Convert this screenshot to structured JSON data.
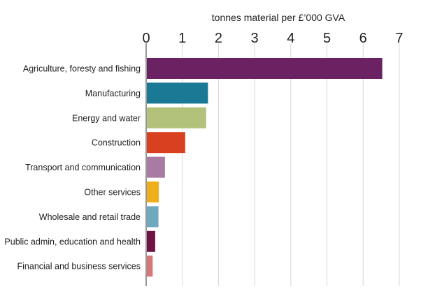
{
  "chart_data": {
    "type": "bar",
    "orientation": "horizontal",
    "title": "",
    "xlabel": "tonnes material per £’000 GVA",
    "ylabel": "",
    "xlim": [
      0,
      7
    ],
    "x_ticks": [
      0,
      1,
      2,
      3,
      4,
      5,
      6,
      7
    ],
    "x_axis_position": "top",
    "grid": true,
    "legend": "none",
    "categories": [
      "Agriculture, foresty and fishing",
      "Manufacturing",
      "Energy and water",
      "Construction",
      "Transport and communication",
      "Other services",
      "Wholesale and retail trade",
      "Public admin, education and health",
      "Financial and business services"
    ],
    "values": [
      6.53,
      1.71,
      1.66,
      1.08,
      0.52,
      0.35,
      0.34,
      0.25,
      0.18
    ],
    "colors": [
      "#6b2262",
      "#1a7a96",
      "#b3c27a",
      "#d9401f",
      "#a97aa2",
      "#efae1c",
      "#6fa9bd",
      "#6e1444",
      "#d8767a"
    ],
    "gridline_color": "#d6d6d6"
  }
}
